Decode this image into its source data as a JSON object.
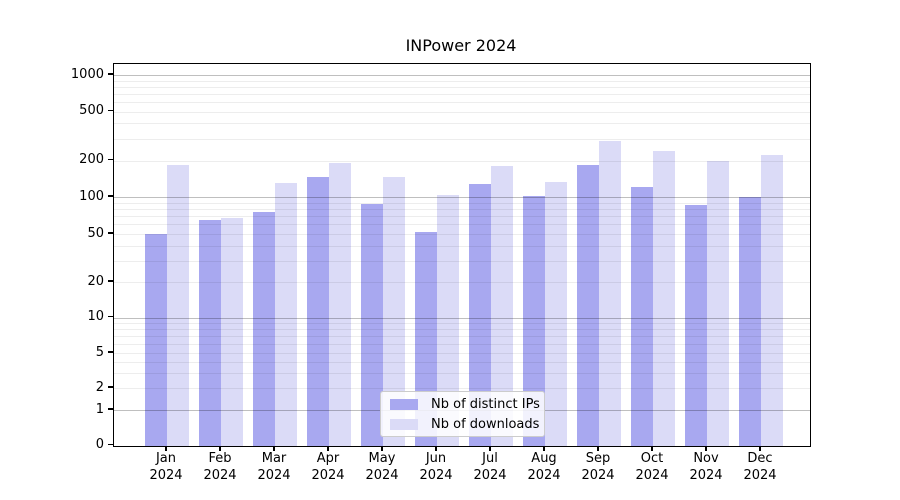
{
  "chart_data": {
    "type": "bar",
    "title": "INPower 2024",
    "categories": [
      "Jan 2024",
      "Feb 2024",
      "Mar 2024",
      "Apr 2024",
      "May 2024",
      "Jun 2024",
      "Jul 2024",
      "Aug 2024",
      "Sep 2024",
      "Oct 2024",
      "Nov 2024",
      "Dec 2024"
    ],
    "series": [
      {
        "name": "Nb of distinct IPs",
        "color": "#a8a8f0",
        "values": [
          50,
          65,
          75,
          147,
          87,
          52,
          127,
          101,
          182,
          122,
          86,
          100
        ]
      },
      {
        "name": "Nb of downloads",
        "color": "#dbdbf7",
        "values": [
          185,
          68,
          131,
          192,
          146,
          103,
          181,
          133,
          290,
          240,
          200,
          220
        ]
      }
    ],
    "yticks": [
      0,
      1,
      2,
      5,
      10,
      20,
      50,
      100,
      200,
      500,
      1000
    ],
    "yscale": "log-like (compressed below 5, includes 0)",
    "ylim": [
      0,
      1000
    ],
    "xlabel": "",
    "ylabel": "",
    "grid": true,
    "grid_over_bars": true,
    "legend_position": "lower center"
  }
}
